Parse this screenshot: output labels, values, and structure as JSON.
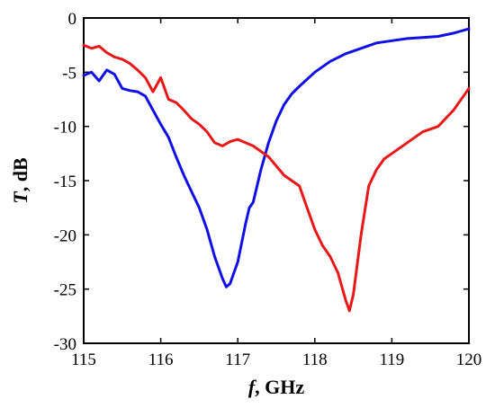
{
  "chart_data": {
    "type": "line",
    "title": "",
    "xlabel": {
      "symbol": "f",
      "rest": ", GHz"
    },
    "ylabel": {
      "symbol": "T",
      "rest": ", dB"
    },
    "xlim": [
      115,
      120
    ],
    "ylim": [
      -30,
      0
    ],
    "xticks": [
      "115",
      "116",
      "117",
      "118",
      "119",
      "120"
    ],
    "yticks": [
      "0",
      "-5",
      "-10",
      "-15",
      "-20",
      "-25",
      "-30"
    ],
    "grid": false,
    "legend": "none",
    "series": [
      {
        "color": "#1010e6",
        "x": [
          115.0,
          115.1,
          115.2,
          115.3,
          115.4,
          115.5,
          115.6,
          115.7,
          115.8,
          115.9,
          116.0,
          116.1,
          116.2,
          116.3,
          116.4,
          116.5,
          116.6,
          116.7,
          116.8,
          116.85,
          116.9,
          117.0,
          117.1,
          117.15,
          117.2,
          117.3,
          117.4,
          117.5,
          117.6,
          117.7,
          117.8,
          118.0,
          118.2,
          118.4,
          118.6,
          118.8,
          119.0,
          119.2,
          119.4,
          119.6,
          119.8,
          120.0
        ],
        "y": [
          -5.3,
          -5.0,
          -5.8,
          -4.8,
          -5.2,
          -6.5,
          -6.7,
          -6.8,
          -7.2,
          -8.5,
          -9.8,
          -11.0,
          -12.8,
          -14.5,
          -16.0,
          -17.5,
          -19.5,
          -22.0,
          -24.0,
          -24.8,
          -24.5,
          -22.5,
          -19.0,
          -17.5,
          -17.0,
          -14.0,
          -11.5,
          -9.5,
          -8.0,
          -7.0,
          -6.3,
          -5.0,
          -4.0,
          -3.3,
          -2.8,
          -2.3,
          -2.1,
          -1.9,
          -1.8,
          -1.7,
          -1.4,
          -1.0
        ]
      },
      {
        "color": "#e81818",
        "x": [
          115.0,
          115.1,
          115.2,
          115.3,
          115.4,
          115.5,
          115.6,
          115.7,
          115.8,
          115.9,
          116.0,
          116.1,
          116.2,
          116.3,
          116.4,
          116.5,
          116.6,
          116.7,
          116.8,
          116.9,
          117.0,
          117.2,
          117.4,
          117.6,
          117.8,
          117.9,
          118.0,
          118.1,
          118.2,
          118.3,
          118.4,
          118.45,
          118.5,
          118.6,
          118.7,
          118.8,
          118.9,
          119.0,
          119.2,
          119.4,
          119.6,
          119.8,
          120.0
        ],
        "y": [
          -2.5,
          -2.8,
          -2.6,
          -3.2,
          -3.6,
          -3.8,
          -4.2,
          -4.8,
          -5.5,
          -6.8,
          -5.5,
          -7.5,
          -7.8,
          -8.5,
          -9.3,
          -9.8,
          -10.5,
          -11.5,
          -11.8,
          -11.4,
          -11.2,
          -11.8,
          -12.8,
          -14.5,
          -15.5,
          -17.5,
          -19.5,
          -21.0,
          -22.0,
          -23.5,
          -26.0,
          -27.0,
          -25.5,
          -20.0,
          -15.5,
          -14.0,
          -13.0,
          -12.5,
          -11.5,
          -10.5,
          -10.0,
          -8.5,
          -6.5
        ]
      }
    ]
  }
}
